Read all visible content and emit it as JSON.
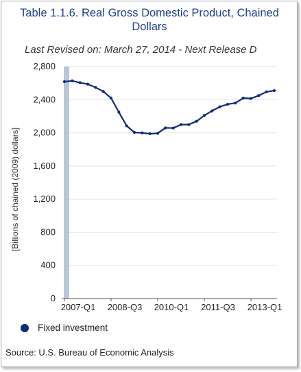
{
  "header": {
    "title": "Table 1.1.6. Real Gross Domestic Product, Chained Dollars",
    "revised": "Last Revised on: March 27, 2014 - Next Release D"
  },
  "legend": {
    "label": "Fixed investment"
  },
  "source": "Source: U.S. Bureau of Economic Analysis",
  "colors": {
    "series": "#0d2a7a",
    "highlight": "#b8c7d8",
    "title": "#1f3f8c"
  },
  "chart_data": {
    "type": "line",
    "title": "Table 1.1.6. Real Gross Domestic Product, Chained Dollars",
    "ylabel": "[Billions of chained (2009) dollars]",
    "xlabel": "",
    "ylim": [
      0,
      2800
    ],
    "yticks": [
      0,
      400,
      800,
      1200,
      1600,
      2000,
      2400,
      2800
    ],
    "ytick_labels": [
      "0",
      "400",
      "800",
      "1,200",
      "1,600",
      "2,000",
      "2,400",
      "2,800"
    ],
    "xtick_labels": [
      "2007-Q1",
      "2008-Q3",
      "2010-Q1",
      "2011-Q3",
      "2013-Q1"
    ],
    "xtick_indices": [
      0,
      6,
      12,
      18,
      24
    ],
    "grid": true,
    "legend_position": "bottom-left",
    "highlight_category": "2007-Q1",
    "categories": [
      "2007-Q1",
      "2007-Q2",
      "2007-Q3",
      "2007-Q4",
      "2008-Q1",
      "2008-Q2",
      "2008-Q3",
      "2008-Q4",
      "2009-Q1",
      "2009-Q2",
      "2009-Q3",
      "2009-Q4",
      "2010-Q1",
      "2010-Q2",
      "2010-Q3",
      "2010-Q4",
      "2011-Q1",
      "2011-Q2",
      "2011-Q3",
      "2011-Q4",
      "2012-Q1",
      "2012-Q2",
      "2012-Q3",
      "2012-Q4",
      "2013-Q1",
      "2013-Q2",
      "2013-Q3",
      "2013-Q4"
    ],
    "series": [
      {
        "name": "Fixed investment",
        "values": [
          2618,
          2628,
          2606,
          2588,
          2548,
          2500,
          2420,
          2250,
          2085,
          2005,
          2000,
          1990,
          1995,
          2060,
          2058,
          2100,
          2100,
          2140,
          2210,
          2265,
          2315,
          2345,
          2360,
          2420,
          2415,
          2450,
          2495,
          2510
        ]
      }
    ]
  }
}
